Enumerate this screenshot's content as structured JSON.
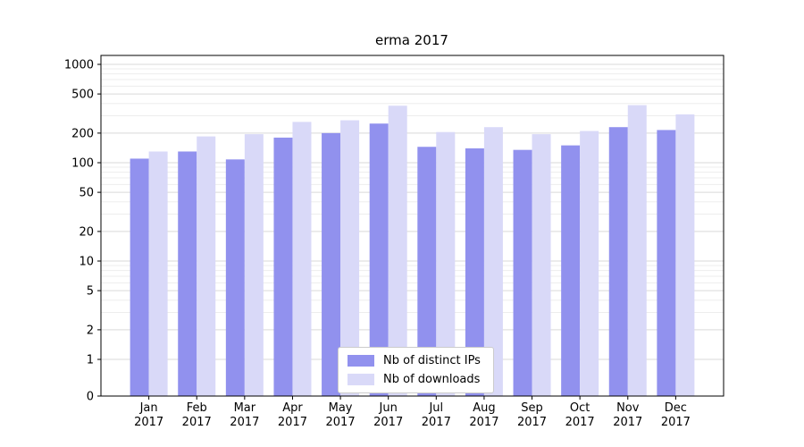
{
  "chart_data": {
    "type": "bar",
    "title": "erma 2017",
    "categories": [
      "Jan",
      "Feb",
      "Mar",
      "Apr",
      "May",
      "Jun",
      "Jul",
      "Aug",
      "Sep",
      "Oct",
      "Nov",
      "Dec"
    ],
    "year": "2017",
    "series": [
      {
        "name": "Nb of distinct IPs",
        "color": "#9191ee",
        "values": [
          110,
          130,
          108,
          180,
          200,
          250,
          145,
          140,
          135,
          150,
          230,
          215
        ]
      },
      {
        "name": "Nb of downloads",
        "color": "#d9d9f8",
        "values": [
          130,
          185,
          195,
          260,
          270,
          380,
          205,
          230,
          195,
          210,
          385,
          310
        ]
      }
    ],
    "yscale": "symlog",
    "yticks": [
      0,
      1,
      2,
      5,
      10,
      20,
      50,
      100,
      200,
      500,
      1000
    ],
    "ylim": [
      0,
      1230
    ],
    "xlabel": "",
    "ylabel": "",
    "grid": true,
    "legend_position": "inside-lower-center"
  },
  "colors": {
    "grid_major": "#d9d9d9",
    "grid_minor": "#ededed",
    "axis": "#000000",
    "background": "#ffffff"
  }
}
